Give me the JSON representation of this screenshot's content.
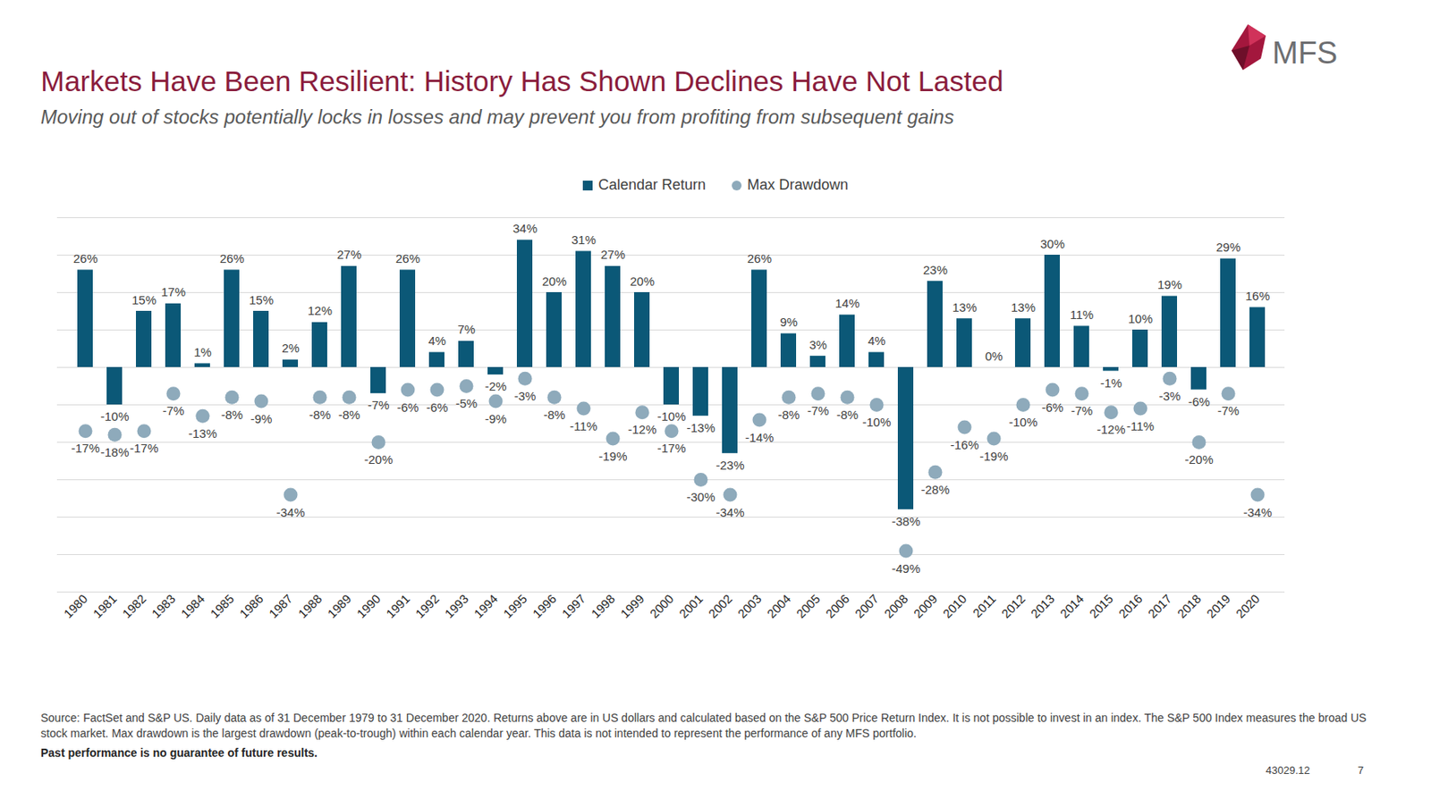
{
  "chart_data": {
    "type": "bar",
    "title": "Markets Have Been Resilient: History Has Shown Declines Have Not Lasted",
    "subtitle": "Moving out of stocks potentially locks in losses and may prevent you from profiting from subsequent gains",
    "categories": [
      "1980",
      "1981",
      "1982",
      "1983",
      "1984",
      "1985",
      "1986",
      "1987",
      "1988",
      "1989",
      "1990",
      "1991",
      "1992",
      "1993",
      "1994",
      "1995",
      "1996",
      "1997",
      "1998",
      "1999",
      "2000",
      "2001",
      "2002",
      "2003",
      "2004",
      "2005",
      "2006",
      "2007",
      "2008",
      "2009",
      "2010",
      "2011",
      "2012",
      "2013",
      "2014",
      "2015",
      "2016",
      "2017",
      "2018",
      "2019",
      "2020"
    ],
    "series": [
      {
        "name": "Calendar Return",
        "type": "bar",
        "color": "#0b5877",
        "values": [
          26,
          -10,
          15,
          17,
          1,
          26,
          15,
          2,
          12,
          27,
          -7,
          26,
          4,
          7,
          -2,
          34,
          20,
          31,
          27,
          20,
          -10,
          -13,
          -23,
          26,
          9,
          3,
          14,
          4,
          -38,
          23,
          13,
          0,
          13,
          30,
          11,
          -1,
          10,
          19,
          -6,
          29,
          16
        ],
        "value_labels": [
          "26%",
          "-10%",
          "15%",
          "17%",
          "1%",
          "26%",
          "15%",
          "2%",
          "12%",
          "27%",
          "-7%",
          "26%",
          "4%",
          "7%",
          "-2%",
          "34%",
          "20%",
          "31%",
          "27%",
          "20%",
          "-10%",
          "-13%",
          "-23%",
          "26%",
          "9%",
          "3%",
          "14%",
          "4%",
          "-38%",
          "23%",
          "13%",
          "0%",
          "13%",
          "30%",
          "11%",
          "-1%",
          "10%",
          "19%",
          "-6%",
          "29%",
          "16%"
        ]
      },
      {
        "name": "Max Drawdown",
        "type": "scatter",
        "marker": "circle",
        "color": "#8eaabb",
        "values": [
          -17,
          -18,
          -17,
          -7,
          -13,
          -8,
          -9,
          -34,
          -8,
          -8,
          -20,
          -6,
          -6,
          -5,
          -9,
          -3,
          -8,
          -11,
          -19,
          -12,
          -17,
          -30,
          -34,
          -14,
          -8,
          -7,
          -8,
          -10,
          -49,
          -28,
          -16,
          -19,
          -10,
          -6,
          -7,
          -12,
          -11,
          -3,
          -20,
          -7,
          -34
        ],
        "value_labels": [
          "-17%",
          "-18%",
          "-17%",
          "-7%",
          "-13%",
          "-8%",
          "-9%",
          "-34%",
          "-8%",
          "-8%",
          "-20%",
          "-6%",
          "-6%",
          "-5%",
          "-9%",
          "-3%",
          "-8%",
          "-11%",
          "-19%",
          "-12%",
          "-17%",
          "-30%",
          "-34%",
          "-14%",
          "-8%",
          "-7%",
          "-8%",
          "-10%",
          "-49%",
          "-28%",
          "-16%",
          "-19%",
          "-10%",
          "-6%",
          "-7%",
          "-12%",
          "-11%",
          "-3%",
          "-20%",
          "-7%",
          "-34%"
        ]
      }
    ],
    "ylim": [
      -60,
      40
    ],
    "yticks": [
      -60,
      -50,
      -40,
      -30,
      -20,
      -10,
      0,
      10,
      20,
      30,
      40
    ],
    "grid": true,
    "legend": "top",
    "data_labels": true,
    "tick_labels": "x",
    "annotations": {
      "logo": "MFS",
      "source": "Source: FactSet and S&P US. Daily data as of 31 December 1979 to 31 December 2020. Returns above are in US dollars and calculated based on the S&P 500 Price Return Index. It is not possible to invest in an index. The S&P 500 Index measures the broad US stock market. Max drawdown is the largest drawdown (peak-to-trough) within each calendar year. This data is not intended to represent the performance of any MFS portfolio.",
      "note": "Past performance is no guarantee of future results.",
      "code": "43029.12",
      "page": "7"
    }
  }
}
